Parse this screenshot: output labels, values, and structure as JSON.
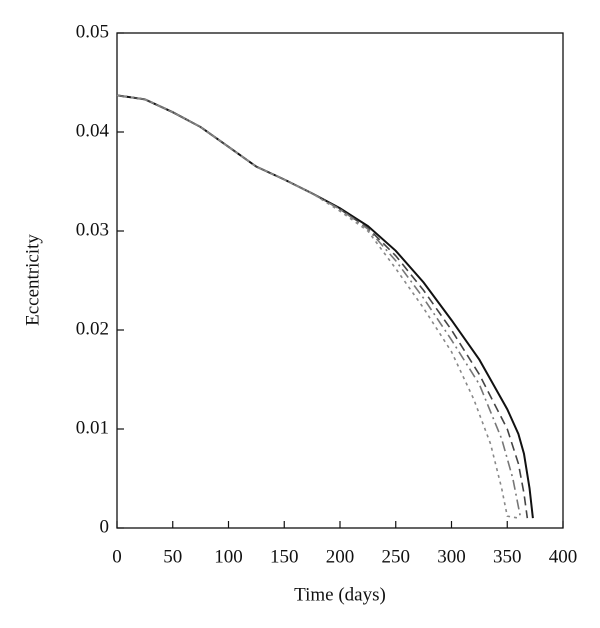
{
  "chart_data": {
    "type": "line",
    "xlabel": "Time (days)",
    "ylabel": "Eccentricity",
    "xlim": [
      0,
      400
    ],
    "xticks": [
      0,
      50,
      100,
      150,
      200,
      250,
      300,
      350,
      400
    ],
    "ylim": [
      0,
      0.05
    ],
    "yticks": [
      0,
      0.01,
      0.02,
      0.03,
      0.04,
      0.05
    ],
    "series": [
      {
        "color": "#111111",
        "style": "solid",
        "x": [
          0,
          25,
          50,
          75,
          100,
          125,
          150,
          175,
          200,
          225,
          250,
          275,
          300,
          325,
          350,
          360,
          365,
          370,
          373
        ],
        "values": [
          0.0437,
          0.0433,
          0.042,
          0.0405,
          0.0385,
          0.0365,
          0.0352,
          0.0338,
          0.0323,
          0.0305,
          0.028,
          0.0248,
          0.021,
          0.017,
          0.012,
          0.0095,
          0.0075,
          0.004,
          0.001
        ]
      },
      {
        "color": "#444444",
        "style": "dashed",
        "x": [
          0,
          25,
          50,
          75,
          100,
          125,
          150,
          175,
          200,
          225,
          250,
          275,
          300,
          325,
          350,
          360,
          365,
          368
        ],
        "values": [
          0.0437,
          0.0433,
          0.042,
          0.0405,
          0.0385,
          0.0365,
          0.0352,
          0.0338,
          0.0322,
          0.0303,
          0.0275,
          0.024,
          0.02,
          0.0155,
          0.01,
          0.0065,
          0.0035,
          0.001
        ]
      },
      {
        "color": "#777777",
        "style": "dashdot",
        "x": [
          0,
          25,
          50,
          75,
          100,
          125,
          150,
          175,
          200,
          225,
          250,
          275,
          300,
          325,
          345,
          355,
          362
        ],
        "values": [
          0.0437,
          0.0433,
          0.042,
          0.0405,
          0.0385,
          0.0365,
          0.0352,
          0.0338,
          0.0322,
          0.0302,
          0.027,
          0.0232,
          0.019,
          0.0145,
          0.009,
          0.005,
          0.001
        ]
      },
      {
        "color": "#888888",
        "style": "dotted",
        "x": [
          0,
          25,
          50,
          75,
          100,
          125,
          150,
          175,
          200,
          225,
          250,
          275,
          300,
          320,
          335,
          345,
          350,
          360
        ],
        "values": [
          0.0437,
          0.0433,
          0.042,
          0.0405,
          0.0385,
          0.0365,
          0.0352,
          0.0338,
          0.032,
          0.03,
          0.0262,
          0.0222,
          0.0178,
          0.013,
          0.0085,
          0.004,
          0.0012,
          0.001
        ]
      }
    ]
  }
}
